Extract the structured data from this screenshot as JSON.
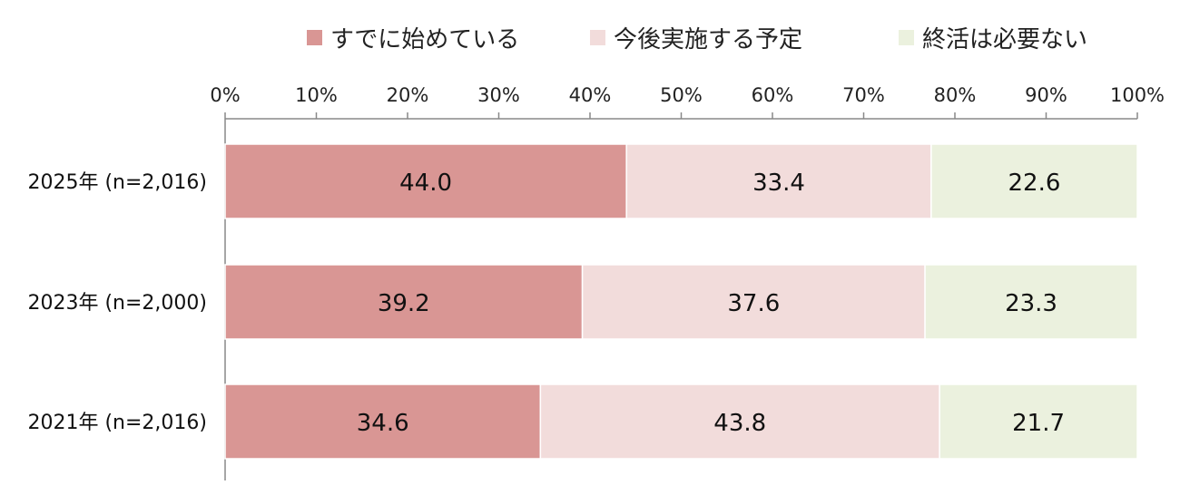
{
  "chart_data": {
    "type": "bar",
    "orientation": "horizontal",
    "stacked": true,
    "categories": [
      "2025年 (n=2,016)",
      "2023年 (n=2,000)",
      "2021年 (n=2,016)"
    ],
    "series": [
      {
        "name": "すでに始めている",
        "values": [
          44.0,
          39.2,
          34.6
        ],
        "color": "#d99694",
        "labels": [
          "44.0",
          "39.2",
          "34.6"
        ]
      },
      {
        "name": "今後実施する予定",
        "values": [
          33.4,
          37.6,
          43.8
        ],
        "color": "#f2dcdb",
        "labels": [
          "33.4",
          "37.6",
          "43.8"
        ]
      },
      {
        "name": "終活は必要ない",
        "values": [
          22.6,
          23.3,
          21.7
        ],
        "color": "#ebf1de",
        "labels": [
          "22.6",
          "23.3",
          "21.7"
        ]
      }
    ],
    "xlim": [
      0,
      100
    ],
    "x_ticks": [
      "0%",
      "10%",
      "20%",
      "30%",
      "40%",
      "50%",
      "60%",
      "70%",
      "80%",
      "90%",
      "100%"
    ],
    "axis_position": "top",
    "legend_position": "top",
    "grid": false
  }
}
